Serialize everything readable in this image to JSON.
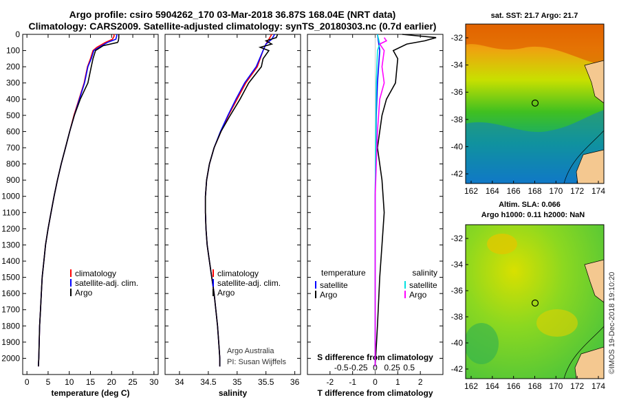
{
  "title_line1": "Argo profile: csiro 5904262_170 03-Mar-2018 36.87S 168.04E (NRT data)",
  "title_line2": "Climatology: CARS2009. Satellite-adjusted climatology: synTS_20180303.nc (0.7d earlier)",
  "credit_line1": "Argo Australia",
  "credit_line2": "PI: Susan Wijffels",
  "timestamp": "©IMOS 19-Dec-2018 19:10:20",
  "colors": {
    "climatology": "#ff0000",
    "satellite": "#0000ff",
    "argo": "#000000",
    "sat_salinity": "#00e0e0",
    "argo_salinity": "#ff00ff"
  },
  "chart_data": [
    {
      "type": "line",
      "id": "temperature",
      "xlabel": "temperature (deg C)",
      "ylim": [
        2100,
        0
      ],
      "xlim": [
        -1,
        31
      ],
      "xticks": [
        0,
        5,
        10,
        15,
        20,
        25,
        30
      ],
      "yticks": [
        0,
        100,
        200,
        300,
        400,
        500,
        600,
        700,
        800,
        900,
        1000,
        1100,
        1200,
        1300,
        1400,
        1500,
        1600,
        1700,
        1800,
        1900,
        2000
      ],
      "legend": [
        "climatology",
        "satellite-adj. clim.",
        "Argo"
      ],
      "series": [
        {
          "name": "climatology",
          "color": "#ff0000",
          "points": [
            [
              20.5,
              0
            ],
            [
              20.6,
              10
            ],
            [
              20.2,
              30
            ],
            [
              18.5,
              50
            ],
            [
              16.5,
              80
            ],
            [
              15.6,
              100
            ],
            [
              15,
              150
            ],
            [
              14.3,
              200
            ],
            [
              13.5,
              300
            ],
            [
              12.3,
              400
            ],
            [
              11.1,
              500
            ],
            [
              10.1,
              600
            ],
            [
              9.1,
              700
            ],
            [
              8.1,
              800
            ],
            [
              7.2,
              900
            ],
            [
              6.4,
              1000
            ],
            [
              5.7,
              1100
            ],
            [
              5.0,
              1200
            ],
            [
              4.4,
              1300
            ],
            [
              4.0,
              1400
            ],
            [
              3.6,
              1500
            ],
            [
              3.4,
              1600
            ],
            [
              3.2,
              1700
            ],
            [
              3.0,
              1800
            ],
            [
              2.9,
              1900
            ],
            [
              2.8,
              2000
            ],
            [
              2.7,
              2050
            ]
          ]
        },
        {
          "name": "satellite-adj. clim.",
          "color": "#0000ff",
          "points": [
            [
              21.2,
              0
            ],
            [
              21.2,
              10
            ],
            [
              21.0,
              30
            ],
            [
              19.0,
              50
            ],
            [
              17.0,
              80
            ],
            [
              15.8,
              100
            ],
            [
              15.2,
              150
            ],
            [
              14.4,
              200
            ],
            [
              13.6,
              300
            ],
            [
              12.4,
              400
            ],
            [
              11.2,
              500
            ],
            [
              10.1,
              600
            ],
            [
              9.1,
              700
            ],
            [
              8.1,
              800
            ],
            [
              7.2,
              900
            ],
            [
              6.4,
              1000
            ],
            [
              5.7,
              1100
            ],
            [
              5.0,
              1200
            ],
            [
              4.4,
              1300
            ],
            [
              4.0,
              1400
            ],
            [
              3.6,
              1500
            ],
            [
              3.4,
              1600
            ],
            [
              3.2,
              1700
            ],
            [
              3.0,
              1800
            ],
            [
              2.9,
              1900
            ],
            [
              2.8,
              2000
            ],
            [
              2.7,
              2050
            ]
          ]
        },
        {
          "name": "Argo",
          "color": "#000000",
          "points": [
            [
              21.7,
              0
            ],
            [
              21.7,
              20
            ],
            [
              21.6,
              40
            ],
            [
              21.4,
              50
            ],
            [
              18,
              70
            ],
            [
              16.2,
              100
            ],
            [
              15.6,
              150
            ],
            [
              15.2,
              200
            ],
            [
              14.4,
              300
            ],
            [
              12.6,
              400
            ],
            [
              11.2,
              500
            ],
            [
              10.1,
              600
            ],
            [
              9.1,
              700
            ],
            [
              8.1,
              800
            ],
            [
              7.2,
              900
            ],
            [
              6.4,
              1000
            ],
            [
              5.7,
              1100
            ],
            [
              5.0,
              1200
            ],
            [
              4.4,
              1300
            ],
            [
              4.0,
              1400
            ],
            [
              3.6,
              1500
            ],
            [
              3.4,
              1600
            ],
            [
              3.2,
              1700
            ],
            [
              3.0,
              1800
            ],
            [
              2.9,
              1900
            ],
            [
              2.8,
              2000
            ],
            [
              2.7,
              2050
            ]
          ]
        }
      ]
    },
    {
      "type": "line",
      "id": "salinity",
      "xlabel": "salinity",
      "ylim": [
        2100,
        0
      ],
      "xlim": [
        33.75,
        36.1
      ],
      "xticks": [
        34,
        34.5,
        35,
        35.5,
        36
      ],
      "legend": [
        "climatology",
        "satellite-adj. clim.",
        "Argo"
      ],
      "series": [
        {
          "name": "climatology",
          "color": "#ff0000",
          "points": [
            [
              35.6,
              0
            ],
            [
              35.55,
              30
            ],
            [
              35.5,
              60
            ],
            [
              35.45,
              100
            ],
            [
              35.35,
              200
            ],
            [
              35.15,
              300
            ],
            [
              35.0,
              400
            ],
            [
              34.85,
              500
            ],
            [
              34.72,
              600
            ],
            [
              34.6,
              700
            ],
            [
              34.52,
              800
            ],
            [
              34.47,
              900
            ],
            [
              34.45,
              1000
            ],
            [
              34.45,
              1100
            ],
            [
              34.46,
              1200
            ],
            [
              34.48,
              1300
            ],
            [
              34.52,
              1400
            ],
            [
              34.56,
              1500
            ],
            [
              34.6,
              1600
            ],
            [
              34.63,
              1700
            ],
            [
              34.66,
              1800
            ],
            [
              34.68,
              1900
            ],
            [
              34.7,
              2000
            ],
            [
              34.7,
              2050
            ]
          ]
        },
        {
          "name": "satellite-adj. clim.",
          "color": "#0000ff",
          "points": [
            [
              35.65,
              0
            ],
            [
              35.6,
              30
            ],
            [
              35.5,
              60
            ],
            [
              35.45,
              100
            ],
            [
              35.33,
              200
            ],
            [
              35.13,
              300
            ],
            [
              34.98,
              400
            ],
            [
              34.84,
              500
            ],
            [
              34.71,
              600
            ],
            [
              34.6,
              700
            ],
            [
              34.52,
              800
            ],
            [
              34.47,
              900
            ],
            [
              34.45,
              1000
            ],
            [
              34.45,
              1100
            ],
            [
              34.46,
              1200
            ],
            [
              34.48,
              1300
            ],
            [
              34.52,
              1400
            ],
            [
              34.56,
              1500
            ],
            [
              34.6,
              1600
            ],
            [
              34.63,
              1700
            ],
            [
              34.66,
              1800
            ],
            [
              34.68,
              1900
            ],
            [
              34.7,
              2000
            ],
            [
              34.7,
              2050
            ]
          ]
        },
        {
          "name": "Argo",
          "color": "#000000",
          "points": [
            [
              35.7,
              0
            ],
            [
              35.68,
              20
            ],
            [
              35.5,
              40
            ],
            [
              35.6,
              60
            ],
            [
              35.4,
              80
            ],
            [
              35.55,
              100
            ],
            [
              35.45,
              150
            ],
            [
              35.42,
              200
            ],
            [
              35.2,
              300
            ],
            [
              35.05,
              400
            ],
            [
              34.88,
              500
            ],
            [
              34.72,
              600
            ],
            [
              34.6,
              700
            ],
            [
              34.52,
              800
            ],
            [
              34.47,
              900
            ],
            [
              34.45,
              1000
            ],
            [
              34.45,
              1100
            ],
            [
              34.46,
              1200
            ],
            [
              34.48,
              1300
            ],
            [
              34.52,
              1400
            ],
            [
              34.56,
              1500
            ],
            [
              34.6,
              1600
            ],
            [
              34.63,
              1700
            ],
            [
              34.66,
              1800
            ],
            [
              34.68,
              1900
            ],
            [
              34.7,
              2000
            ],
            [
              34.7,
              2050
            ]
          ]
        }
      ]
    },
    {
      "type": "line",
      "id": "differences",
      "xlabel": "T difference from climatology",
      "xlabel_top": "S difference from climatology",
      "ylim": [
        2100,
        0
      ],
      "xlim": [
        -3,
        3
      ],
      "xticks": [
        -2,
        -1,
        0,
        1,
        2
      ],
      "xticks_top": [
        "-0.5",
        "-0.25",
        "0",
        "0.25",
        "0.5"
      ],
      "legend_left_title": "temperature",
      "legend_right_title": "salinity",
      "legend": [
        "satellite",
        "Argo",
        "satellite",
        "Argo"
      ],
      "series": [
        {
          "name": "satellite",
          "group": "temperature",
          "color": "#0000ff",
          "points": [
            [
              0.1,
              0
            ],
            [
              0.2,
              100
            ],
            [
              0.1,
              300
            ],
            [
              0.05,
              500
            ],
            [
              0,
              1000
            ],
            [
              0,
              2050
            ]
          ]
        },
        {
          "name": "Argo",
          "group": "temperature",
          "color": "#000000",
          "points": [
            [
              1.2,
              0
            ],
            [
              2.7,
              20
            ],
            [
              2.2,
              40
            ],
            [
              1.4,
              60
            ],
            [
              0.8,
              100
            ],
            [
              1.0,
              150
            ],
            [
              0.9,
              300
            ],
            [
              0.5,
              400
            ],
            [
              0.3,
              500
            ],
            [
              0.1,
              700
            ],
            [
              0.3,
              900
            ],
            [
              0.4,
              1100
            ],
            [
              0.3,
              1300
            ],
            [
              0.2,
              1500
            ],
            [
              0.1,
              1800
            ],
            [
              0,
              2050
            ]
          ]
        },
        {
          "name": "satellite",
          "group": "salinity",
          "color": "#00e0e0",
          "points": [
            [
              0.1,
              0
            ],
            [
              0.2,
              60
            ],
            [
              0.1,
              100
            ],
            [
              0.05,
              300
            ],
            [
              0,
              1000
            ],
            [
              0,
              2050
            ]
          ]
        },
        {
          "name": "Argo",
          "group": "salinity",
          "color": "#ff00ff",
          "points": [
            [
              0.4,
              20
            ],
            [
              0.5,
              40
            ],
            [
              0.2,
              60
            ],
            [
              0.4,
              100
            ],
            [
              0.3,
              200
            ],
            [
              0.4,
              300
            ],
            [
              0.2,
              400
            ],
            [
              0.1,
              600
            ],
            [
              0.05,
              800
            ],
            [
              0,
              1000
            ],
            [
              0,
              2050
            ]
          ]
        }
      ]
    }
  ],
  "maps": [
    {
      "title": "sat. SST: 21.7 Argo: 21.7",
      "xticks": [
        "162",
        "164",
        "166",
        "168",
        "170",
        "172",
        "174"
      ],
      "yticks": [
        "-32",
        "-34",
        "-36",
        "-38",
        "-40",
        "-42"
      ]
    },
    {
      "title_line1": "Altim. SLA: 0.066",
      "title_line2": "Argo h1000: 0.11 h2000: NaN",
      "xticks": [
        "162",
        "164",
        "166",
        "168",
        "170",
        "172",
        "174"
      ],
      "yticks": [
        "-32",
        "-34",
        "-36",
        "-38",
        "-40",
        "-42"
      ]
    }
  ]
}
